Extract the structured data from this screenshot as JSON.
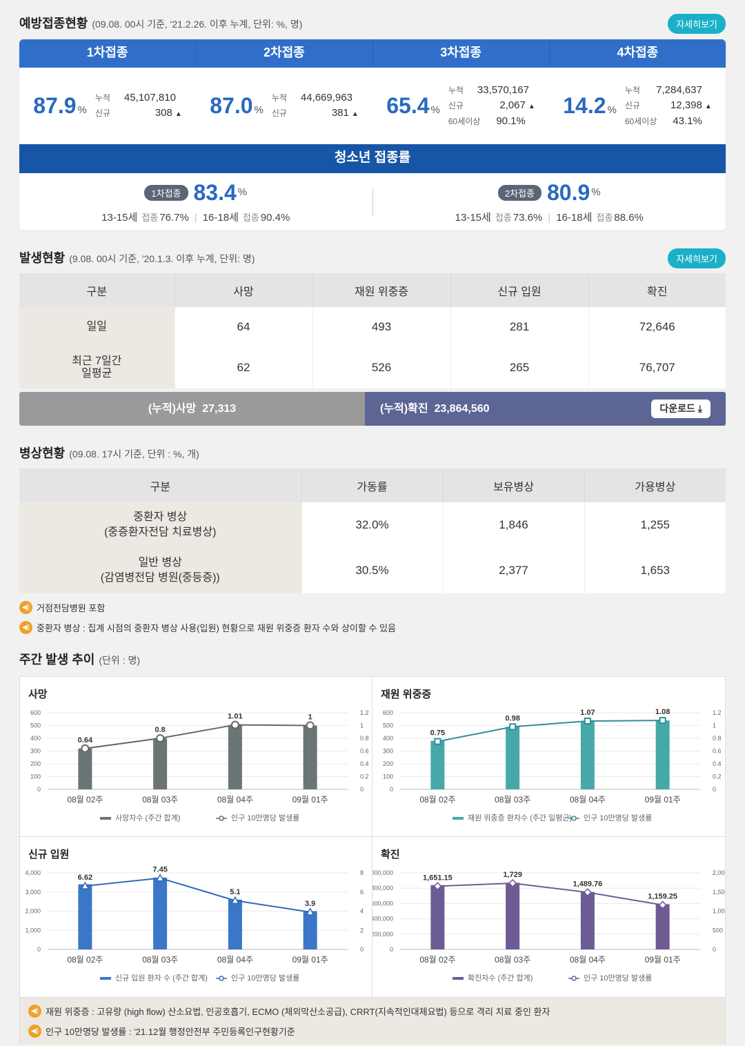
{
  "vaccination": {
    "title": "예방접종현황",
    "subtitle": "(09.08. 00시 기준, '21.2.26. 이후 누계, 단위: %, 명)",
    "more_label": "자세히보기",
    "pct_unit": "%",
    "cum_label": "누적",
    "new_label": "신규",
    "over60_label": "60세이상",
    "doses": [
      {
        "name": "1차접종",
        "rate": "87.9",
        "cumulative": "45,107,810",
        "new": "308"
      },
      {
        "name": "2차접종",
        "rate": "87.0",
        "cumulative": "44,669,963",
        "new": "381"
      },
      {
        "name": "3차접종",
        "rate": "65.4",
        "cumulative": "33,570,167",
        "new": "2,067",
        "over60": "90.1%"
      },
      {
        "name": "4차접종",
        "rate": "14.2",
        "cumulative": "7,284,637",
        "new": "12,398",
        "over60": "43.1%"
      }
    ],
    "youth": {
      "title": "청소년 접종률",
      "age1": "13-15세",
      "age2": "16-18세",
      "rate_label": "접종",
      "items": [
        {
          "pill": "1차접종",
          "rate": "83.4",
          "r1315": "76.7%",
          "r1618": "90.4%"
        },
        {
          "pill": "2차접종",
          "rate": "80.9",
          "r1315": "73.6%",
          "r1618": "88.6%"
        }
      ]
    }
  },
  "occurrence": {
    "title": "발생현황",
    "subtitle": "(9.08. 00시 기준, '20.1.3. 이후 누계, 단위: 명)",
    "more_label": "자세히보기",
    "headers": [
      "구분",
      "사망",
      "재원 위중증",
      "신규 입원",
      "확진"
    ],
    "rows": [
      {
        "label": "일일",
        "values": [
          "64",
          "493",
          "281",
          "72,646"
        ]
      },
      {
        "label": "최근 7일간\n일평균",
        "label1": "최근 7일간",
        "label2": "일평균",
        "values": [
          "62",
          "526",
          "265",
          "76,707"
        ]
      }
    ],
    "cum_death_label": "(누적)사망",
    "cum_death": "27,313",
    "cum_conf_label": "(누적)확진",
    "cum_conf": "23,864,560",
    "download_label": "다운로드",
    "download_icon": "download-icon"
  },
  "beds": {
    "title": "병상현황",
    "subtitle": "(09.08. 17시 기준, 단위 : %, 개)",
    "headers": [
      "구분",
      "가동률",
      "보유병상",
      "가용병상"
    ],
    "rows": [
      {
        "label1": "중환자 병상",
        "label2": "(중증환자전담 치료병상)",
        "values": [
          "32.0%",
          "1,846",
          "1,255"
        ]
      },
      {
        "label1": "일반 병상",
        "label2": "(감염병전담 병원(중등증))",
        "values": [
          "30.5%",
          "2,377",
          "1,653"
        ]
      }
    ],
    "notes": [
      "거점전담병원 포함",
      "중환자 병상 : 집계 시점의 중환자 병상 사용(입원) 현황으로 재원 위중증 환자 수와 상이할 수 있음"
    ]
  },
  "weekly": {
    "title": "주간 발생 추이",
    "subtitle": "(단위 : 명)",
    "footnotes": [
      "재원 위중증 : 고유량 (high flow) 산소요법, 인공호흡기, ECMO (체외막산소공급), CRRT(지속적인대체요법) 등으로 격리 치료 중인 환자",
      "인구 10만명당 발생률 : '21.12월 행정안전부 주민등록인구현황기준"
    ]
  },
  "chart_data": [
    {
      "type": "bar",
      "title": "사망",
      "categories": [
        "08월 02주",
        "08월 03주",
        "08월 04주",
        "09월 01주"
      ],
      "series": [
        {
          "name": "사망자수 (주간 합계)",
          "values": [
            320,
            400,
            505,
            500
          ],
          "color": "#6b7575"
        },
        {
          "name": "인구 10만명당 발생률",
          "values": [
            0.64,
            0.8,
            1.01,
            1
          ],
          "axis": "right",
          "labels": [
            "0.64",
            "0.8",
            "1.01",
            "1"
          ]
        }
      ],
      "ylim": [
        0,
        600
      ],
      "yticks": [
        "0",
        "100",
        "200",
        "300",
        "400",
        "500",
        "600"
      ],
      "y2lim": [
        0,
        1.2
      ],
      "y2ticks": [
        "0",
        "0.2",
        "0.4",
        "0.6",
        "0.8",
        "1",
        "1.2"
      ],
      "line_color": "#666666",
      "marker": "circle"
    },
    {
      "type": "bar",
      "title": "재원 위중증",
      "categories": [
        "08월 02주",
        "08월 03주",
        "08월 04주",
        "09월 01주"
      ],
      "series": [
        {
          "name": "재원 위중증 환자수 (주간 일평균)",
          "values": [
            380,
            490,
            535,
            540
          ],
          "color": "#47a8aa"
        },
        {
          "name": "인구 10만명당 발생률",
          "values": [
            0.75,
            0.98,
            1.07,
            1.08
          ],
          "axis": "right",
          "labels": [
            "0.75",
            "0.98",
            "1.07",
            "1.08"
          ]
        }
      ],
      "ylim": [
        0,
        600
      ],
      "yticks": [
        "0",
        "100",
        "200",
        "300",
        "400",
        "500",
        "600"
      ],
      "y2lim": [
        0,
        1.2
      ],
      "y2ticks": [
        "0",
        "0.2",
        "0.4",
        "0.6",
        "0.8",
        "1",
        "1.2"
      ],
      "line_color": "#2f8f93",
      "marker": "square"
    },
    {
      "type": "bar",
      "title": "신규 입원",
      "categories": [
        "08월 02주",
        "08월 03주",
        "08월 04주",
        "09월 01주"
      ],
      "series": [
        {
          "name": "신규 입원 환자 수 (주간 합계)",
          "values": [
            3400,
            3750,
            2600,
            2000
          ],
          "color": "#3b76c8"
        },
        {
          "name": "인구 10만명당 발생률",
          "values": [
            6.62,
            7.45,
            5.1,
            3.9
          ],
          "axis": "right",
          "labels": [
            "6.62",
            "7.45",
            "5.1",
            "3.9"
          ]
        }
      ],
      "ylim": [
        0,
        4000
      ],
      "yticks": [
        "0",
        "1,000",
        "2,000",
        "3,000",
        "4,000"
      ],
      "y2lim": [
        0,
        8
      ],
      "y2ticks": [
        "0",
        "2",
        "4",
        "6",
        "8"
      ],
      "line_color": "#2f6ab8",
      "marker": "triangle"
    },
    {
      "type": "bar",
      "title": "확진",
      "categories": [
        "08월 02주",
        "08월 03주",
        "08월 04주",
        "09월 01주"
      ],
      "series": [
        {
          "name": "확진자수 (주간 합계)",
          "values": [
            840000,
            870000,
            750000,
            590000
          ],
          "color": "#6d5b94"
        },
        {
          "name": "인구 10만명당 발생률",
          "values": [
            1651.15,
            1729,
            1489.76,
            1159.25
          ],
          "axis": "right",
          "labels": [
            "1,651.15",
            "1,729",
            "1,489.76",
            "1,159.25"
          ]
        }
      ],
      "ylim": [
        0,
        1000000
      ],
      "yticks": [
        "0",
        "200,000",
        "400,000",
        "600,000",
        "800,000",
        "1,000,000"
      ],
      "y2lim": [
        0,
        2000
      ],
      "y2ticks": [
        "0",
        "500",
        "1,000",
        "1,500",
        "2,000"
      ],
      "line_color": "#6d5b94",
      "marker": "diamond"
    }
  ]
}
